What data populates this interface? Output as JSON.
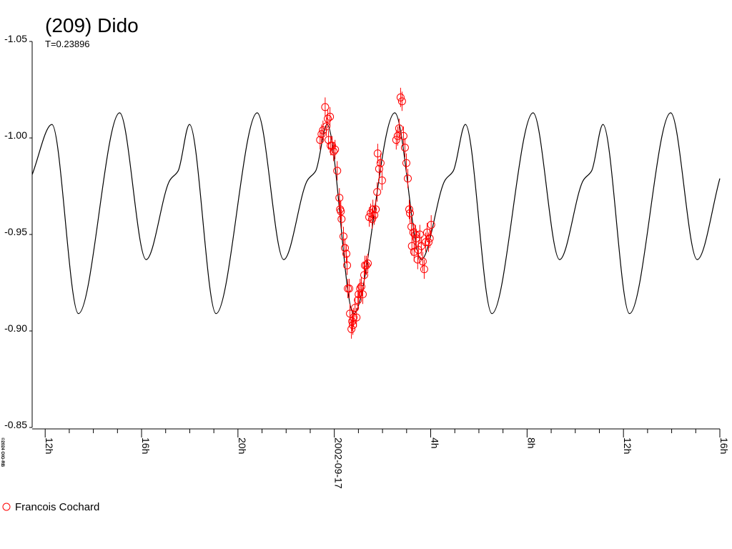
{
  "chart_data": {
    "type": "scatter",
    "title": "(209) Dido",
    "subtitle": "T=0.23896",
    "credit": "©2024 OIG-RB",
    "y_inverted": true,
    "legend": "bottom-left",
    "xlim": [
      -12.54,
      16
    ],
    "xticks": [
      {
        "value": -12,
        "label": "12h"
      },
      {
        "value": -8,
        "label": "16h"
      },
      {
        "value": -4,
        "label": "20h"
      },
      {
        "value": 0,
        "label": "2002-09-17"
      },
      {
        "value": 4,
        "label": "4h"
      },
      {
        "value": 8,
        "label": "8h"
      },
      {
        "value": 12,
        "label": "12h"
      },
      {
        "value": 16,
        "label": "16h"
      }
    ],
    "xminorticks": [
      -11,
      -10,
      -9,
      -7,
      -6,
      -5,
      -3,
      -2,
      -1,
      1,
      2,
      3,
      5,
      6,
      7,
      9,
      10,
      11,
      13,
      14,
      15
    ],
    "ylim": [
      -1.05,
      -0.85
    ],
    "yticks": [
      -1.05,
      {
        "value": -1.0,
        "label": "-1.00"
      },
      -0.95,
      {
        "value": -0.9,
        "label": "-0.90"
      },
      -0.85
    ],
    "model": {
      "color": "#000000",
      "x": [
        -12.54,
        -11.72,
        -10.62,
        -8.91,
        -7.81,
        -6.83,
        -6.48,
        -6.01,
        -4.91,
        -3.2,
        -2.1,
        -1.12,
        -0.77,
        -0.3,
        0.8,
        2.51,
        3.61,
        4.59,
        4.94,
        5.44,
        6.54,
        8.25,
        9.35,
        10.33,
        10.68,
        11.15,
        12.25,
        13.96,
        15.06,
        16.0
      ],
      "values": [
        -0.981,
        -1.007,
        -0.909,
        -1.013,
        -0.937,
        -0.978,
        -0.983,
        -1.007,
        -0.909,
        -1.013,
        -0.937,
        -0.978,
        -0.983,
        -1.007,
        -0.909,
        -1.013,
        -0.937,
        -0.978,
        -0.983,
        -1.007,
        -0.909,
        -1.013,
        -0.937,
        -0.978,
        -0.983,
        -1.007,
        -0.909,
        -1.013,
        -0.937,
        -0.979
      ]
    },
    "series": [
      {
        "name": "Francois Cochard",
        "color": "#ff0000",
        "error": 0.005,
        "x": [
          -0.59,
          -0.53,
          -0.47,
          -0.38,
          -0.33,
          -0.27,
          -0.24,
          -0.18,
          -0.15,
          -0.09,
          -0.03,
          0.03,
          0.12,
          0.21,
          0.24,
          0.27,
          0.3,
          0.38,
          0.44,
          0.5,
          0.53,
          0.56,
          0.62,
          0.65,
          0.71,
          0.74,
          0.77,
          0.8,
          0.86,
          0.92,
          0.98,
          1.01,
          1.07,
          1.12,
          1.18,
          1.24,
          1.27,
          1.33,
          1.39,
          1.45,
          1.51,
          1.57,
          1.6,
          1.66,
          1.72,
          1.78,
          1.8,
          1.86,
          1.92,
          1.98,
          2.57,
          2.63,
          2.69,
          2.75,
          2.81,
          2.87,
          2.93,
          2.99,
          3.05,
          3.11,
          3.14,
          3.2,
          3.22,
          3.28,
          3.31,
          3.37,
          3.4,
          3.46,
          3.49,
          3.55,
          3.61,
          3.67,
          3.73,
          3.79,
          3.85,
          3.91,
          3.96,
          4.02
        ],
        "values": [
          -0.999,
          -1.002,
          -1.004,
          -1.016,
          -1.006,
          -1.01,
          -0.999,
          -1.011,
          -0.996,
          -0.996,
          -0.993,
          -0.994,
          -0.983,
          -0.969,
          -0.963,
          -0.962,
          -0.958,
          -0.949,
          -0.943,
          -0.94,
          -0.934,
          -0.922,
          -0.922,
          -0.909,
          -0.901,
          -0.905,
          -0.903,
          -0.907,
          -0.912,
          -0.907,
          -0.916,
          -0.919,
          -0.922,
          -0.923,
          -0.919,
          -0.929,
          -0.934,
          -0.934,
          -0.935,
          -0.959,
          -0.961,
          -0.958,
          -0.963,
          -0.96,
          -0.963,
          -0.972,
          -0.992,
          -0.984,
          -0.987,
          -0.978,
          -0.999,
          -1.001,
          -1.005,
          -1.021,
          -1.019,
          -1.001,
          -0.995,
          -0.987,
          -0.979,
          -0.963,
          -0.961,
          -0.954,
          -0.944,
          -0.951,
          -0.941,
          -0.95,
          -0.948,
          -0.937,
          -0.942,
          -0.95,
          -0.944,
          -0.936,
          -0.932,
          -0.946,
          -0.951,
          -0.946,
          -0.948,
          -0.955
        ]
      }
    ]
  }
}
